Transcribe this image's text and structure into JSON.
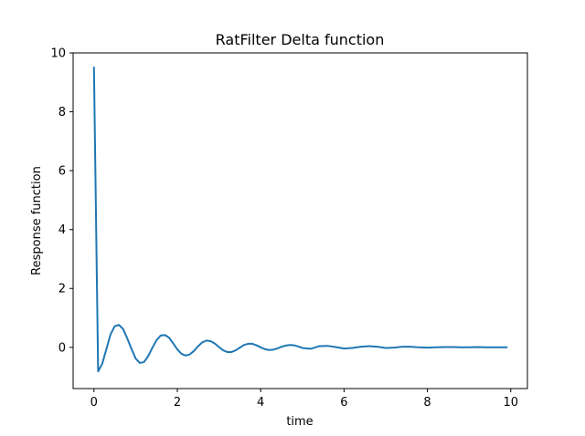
{
  "chart_data": {
    "type": "line",
    "title": "RatFilter Delta function",
    "xlabel": "time",
    "ylabel": "Response function",
    "xlim": [
      -0.5,
      10.4
    ],
    "ylim": [
      -1.4,
      10.0
    ],
    "xticks": [
      0,
      2,
      4,
      6,
      8,
      10
    ],
    "yticks": [
      0,
      2,
      4,
      6,
      8,
      10
    ],
    "grid": false,
    "series": [
      {
        "color": "#1f77b4",
        "x": [
          0.0,
          0.1,
          0.2,
          0.3,
          0.4,
          0.5,
          0.6,
          0.7,
          0.8,
          0.9,
          1.0,
          1.1,
          1.2,
          1.3,
          1.4,
          1.5,
          1.6,
          1.7,
          1.8,
          1.9,
          2.0,
          2.1,
          2.2,
          2.3,
          2.4,
          2.5,
          2.6,
          2.7,
          2.8,
          2.9,
          3.0,
          3.1,
          3.2,
          3.3,
          3.4,
          3.5,
          3.6,
          3.7,
          3.8,
          3.9,
          4.0,
          4.1,
          4.2,
          4.3,
          4.4,
          4.5,
          4.6,
          4.7,
          4.8,
          4.9,
          5.0,
          5.2,
          5.4,
          5.6,
          5.8,
          6.0,
          6.2,
          6.4,
          6.6,
          6.8,
          7.0,
          7.2,
          7.4,
          7.6,
          7.8,
          8.0,
          8.2,
          8.4,
          8.6,
          8.8,
          9.0,
          9.2,
          9.4,
          9.6,
          9.9
        ],
        "y": [
          9.5,
          -0.82,
          -0.55,
          -0.05,
          0.45,
          0.72,
          0.76,
          0.62,
          0.3,
          -0.05,
          -0.38,
          -0.53,
          -0.5,
          -0.3,
          -0.02,
          0.24,
          0.4,
          0.42,
          0.33,
          0.14,
          -0.07,
          -0.22,
          -0.28,
          -0.24,
          -0.12,
          0.04,
          0.17,
          0.23,
          0.21,
          0.13,
          0.01,
          -0.1,
          -0.16,
          -0.16,
          -0.1,
          -0.01,
          0.08,
          0.12,
          0.12,
          0.07,
          0.0,
          -0.06,
          -0.09,
          -0.08,
          -0.04,
          0.02,
          0.06,
          0.08,
          0.07,
          0.03,
          -0.02,
          -0.05,
          0.04,
          0.05,
          0.01,
          -0.04,
          -0.02,
          0.02,
          0.04,
          0.02,
          -0.02,
          -0.01,
          0.02,
          0.02,
          0.0,
          -0.01,
          0.0,
          0.01,
          0.01,
          0.0,
          0.0,
          0.01,
          0.0,
          0.0,
          0.0
        ]
      }
    ]
  }
}
